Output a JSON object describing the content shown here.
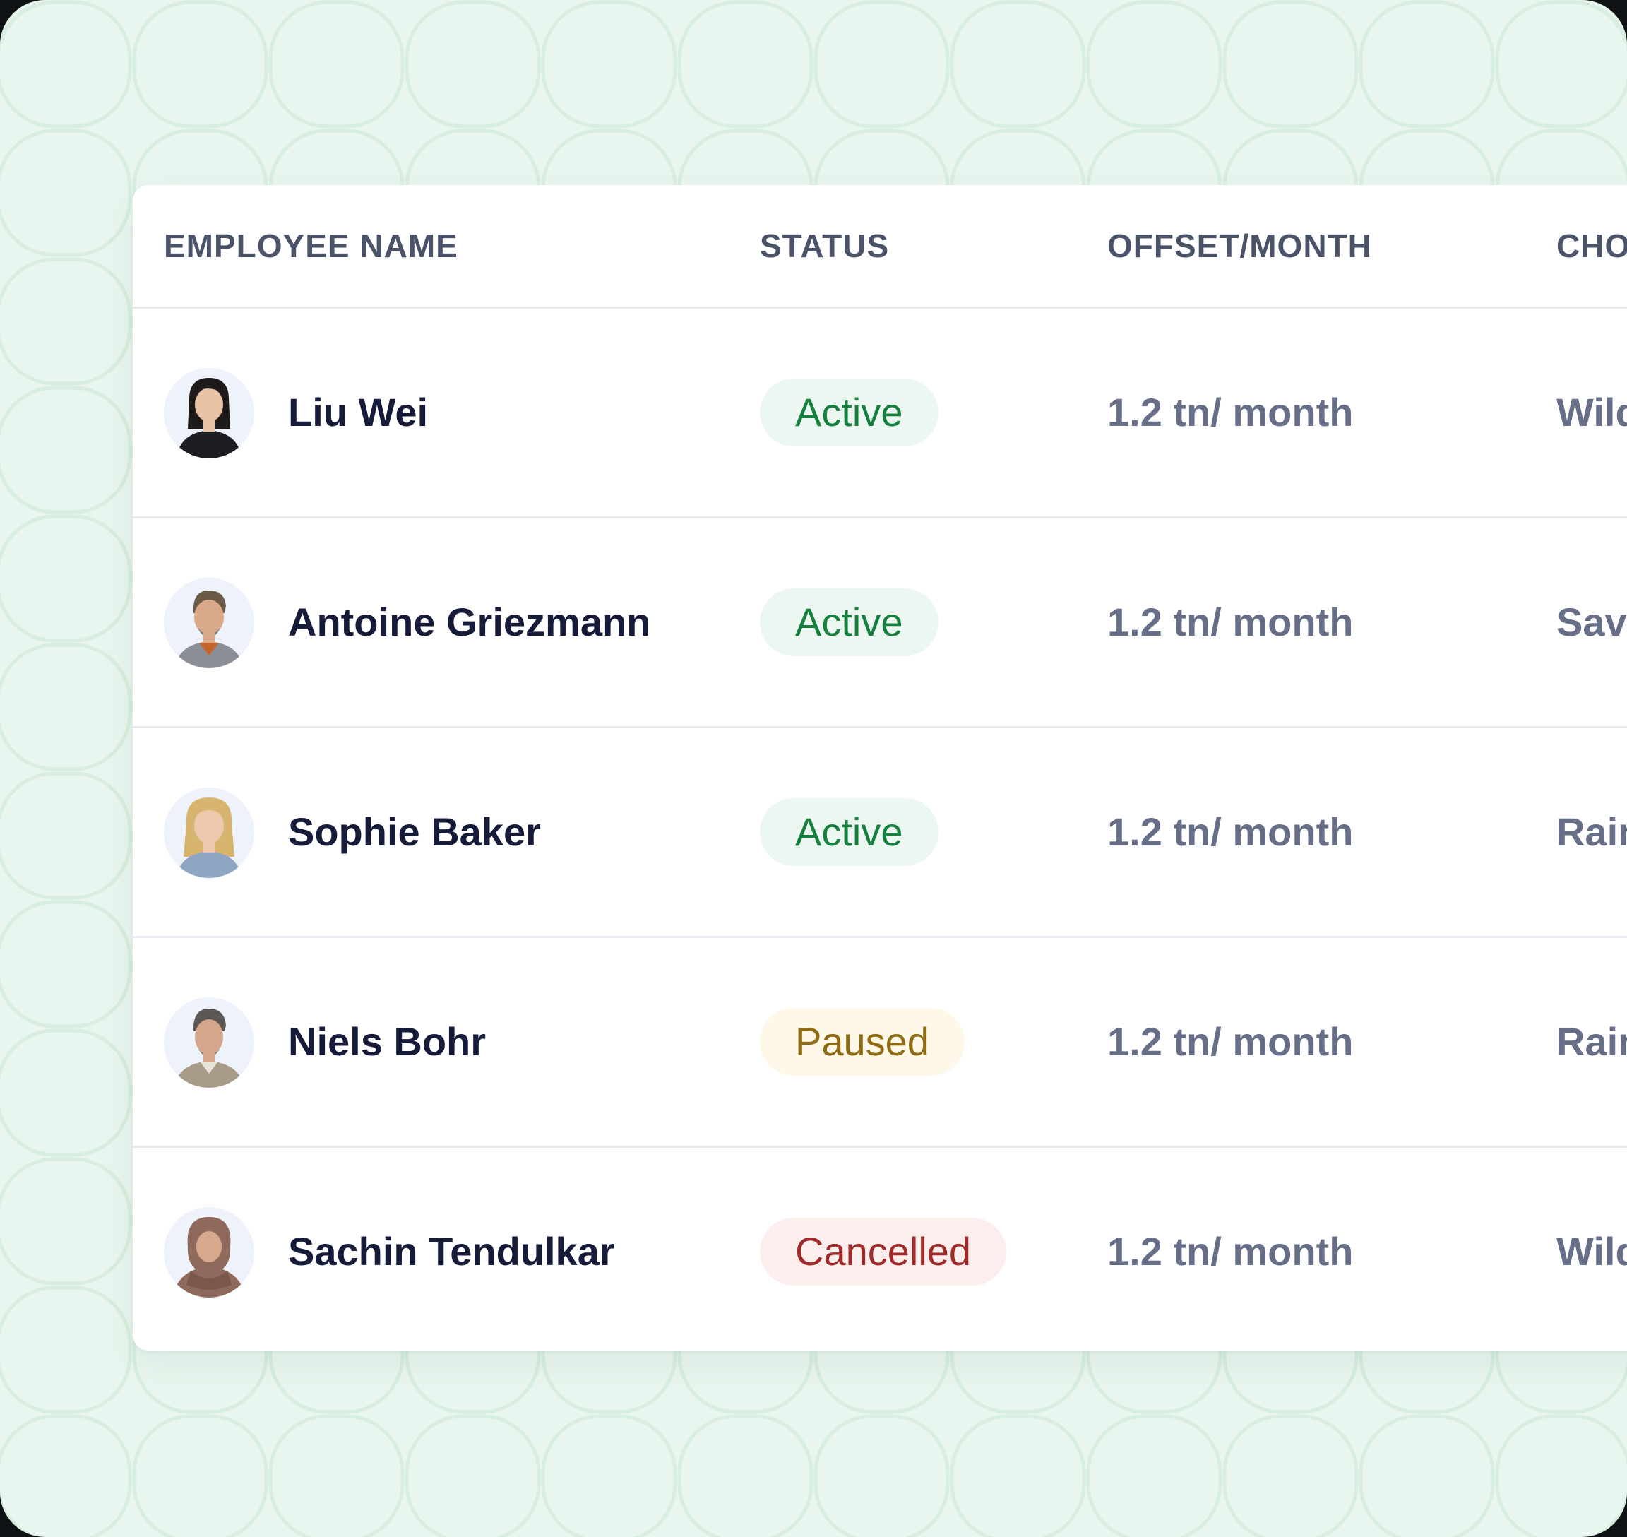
{
  "table": {
    "headers": {
      "name": "EMPLOYEE NAME",
      "status": "STATUS",
      "offset": "OFFSET/MONTH",
      "choice": "CHO"
    },
    "rows": [
      {
        "name": "Liu Wei",
        "status": "Active",
        "offset": "1.2 tn/ month",
        "choice": "Wild",
        "avatar_icon": "person-avatar-icon"
      },
      {
        "name": "Antoine Griezmann",
        "status": "Active",
        "offset": "1.2 tn/ month",
        "choice": "Sav",
        "avatar_icon": "person-avatar-icon"
      },
      {
        "name": "Sophie Baker",
        "status": "Active",
        "offset": "1.2 tn/ month",
        "choice": "Rain",
        "avatar_icon": "person-avatar-icon"
      },
      {
        "name": "Niels Bohr",
        "status": "Paused",
        "offset": "1.2 tn/ month",
        "choice": "Rain",
        "avatar_icon": "person-avatar-icon"
      },
      {
        "name": "Sachin Tendulkar",
        "status": "Cancelled",
        "offset": "1.2 tn/ month",
        "choice": "Wild",
        "avatar_icon": "person-avatar-icon"
      }
    ]
  },
  "colors": {
    "background": "#e9f6ef",
    "active_text": "#15803d",
    "active_bg": "#edf7f1",
    "paused_text": "#8f6b14",
    "paused_bg": "#fdf8e8",
    "cancelled_text": "#a02a2a",
    "cancelled_bg": "#fdeeee",
    "name_text": "#151b38",
    "muted_text": "#676e88"
  }
}
